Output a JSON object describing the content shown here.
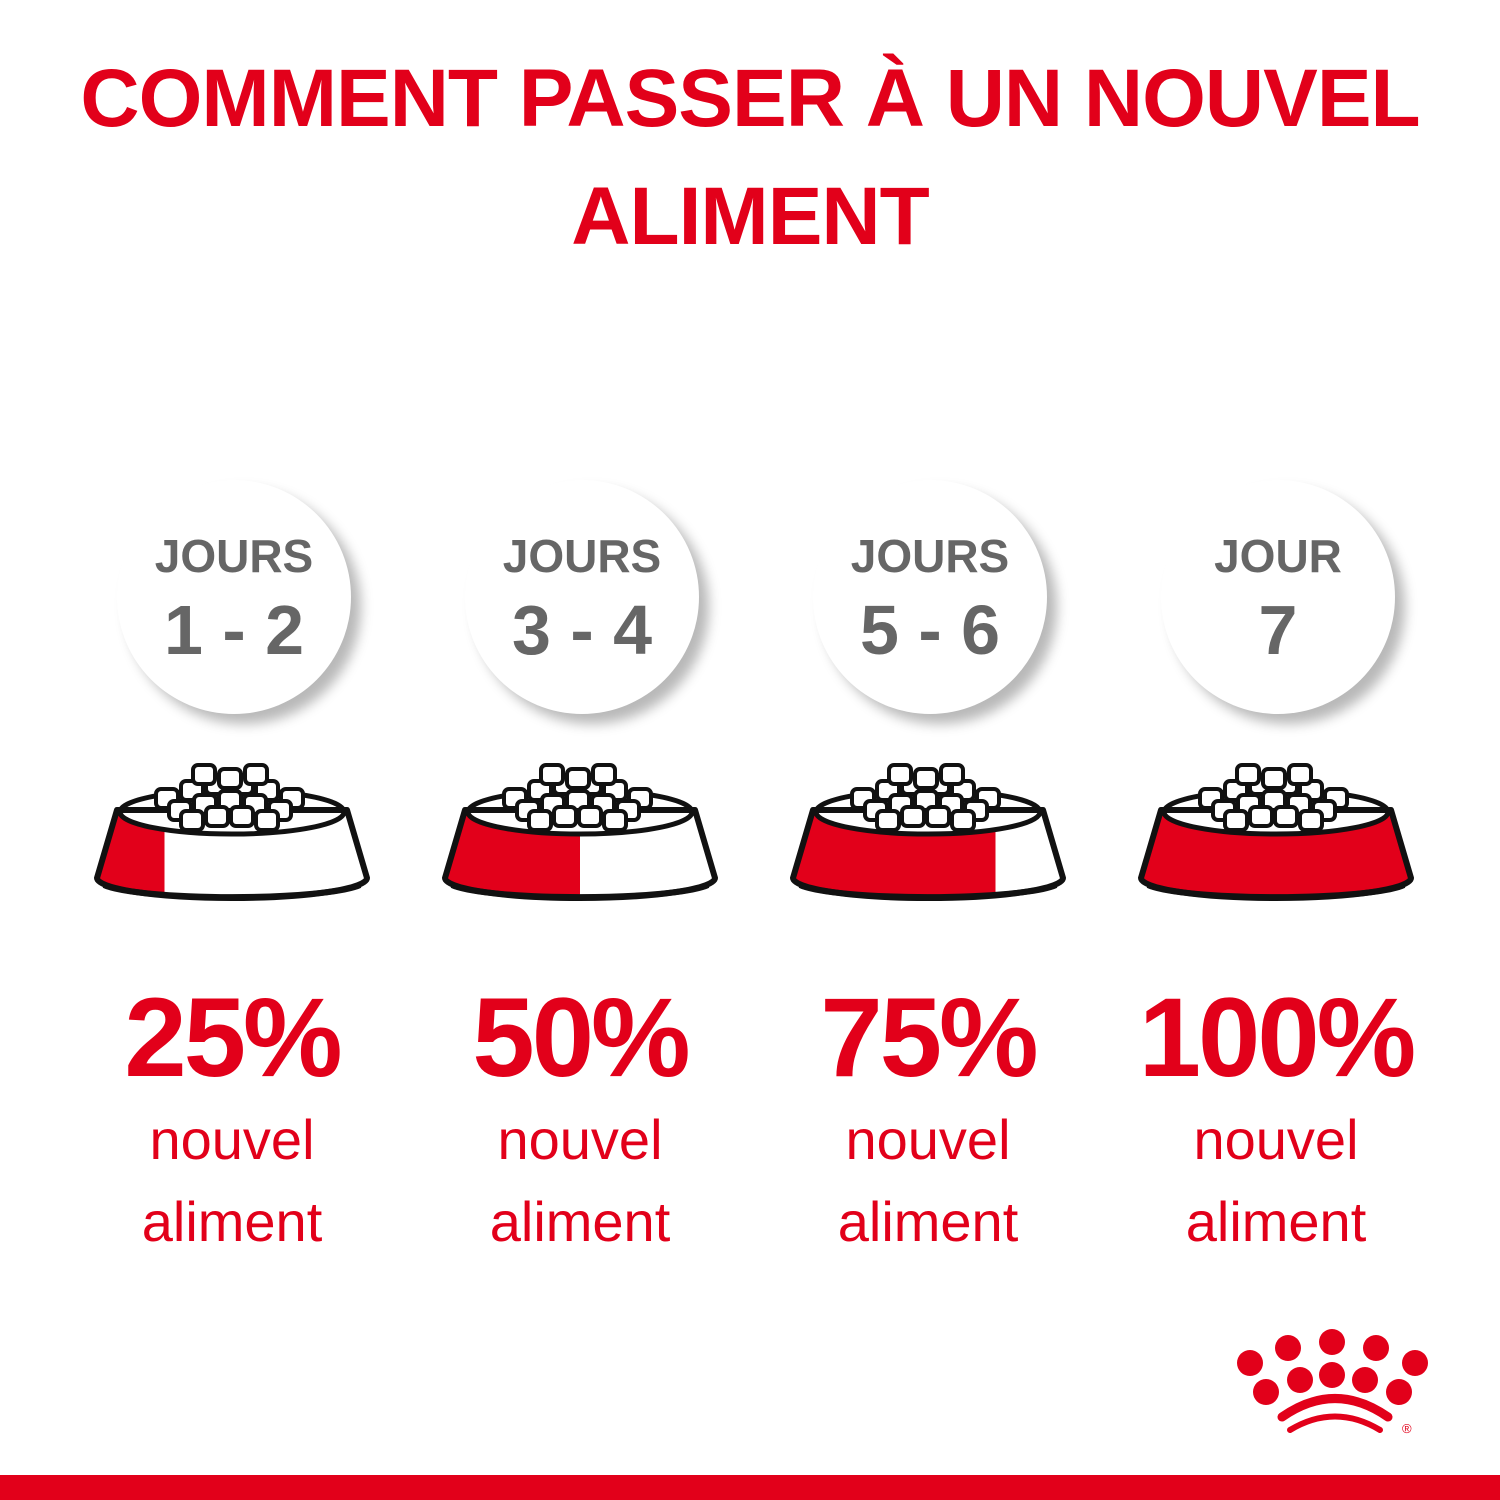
{
  "title": {
    "line1": "COMMENT PASSER À UN NOUVEL",
    "line2": "ALIMENT"
  },
  "colors": {
    "brand_red": "#e2001a",
    "grey_text": "#666666",
    "outline": "#111111"
  },
  "steps": [
    {
      "label": "JOURS",
      "days": "1 - 2",
      "percent": "25%",
      "fraction": 0.25,
      "line1": "nouvel",
      "line2": "aliment"
    },
    {
      "label": "JOURS",
      "days": "3 - 4",
      "percent": "50%",
      "fraction": 0.5,
      "line1": "nouvel",
      "line2": "aliment"
    },
    {
      "label": "JOURS",
      "days": "5 - 6",
      "percent": "75%",
      "fraction": 0.75,
      "line1": "nouvel",
      "line2": "aliment"
    },
    {
      "label": "JOUR",
      "days": "7",
      "percent": "100%",
      "fraction": 1.0,
      "line1": "nouvel",
      "line2": "aliment"
    }
  ],
  "logo": {
    "icon": "royal-canin-crown-icon",
    "mark": "®"
  }
}
